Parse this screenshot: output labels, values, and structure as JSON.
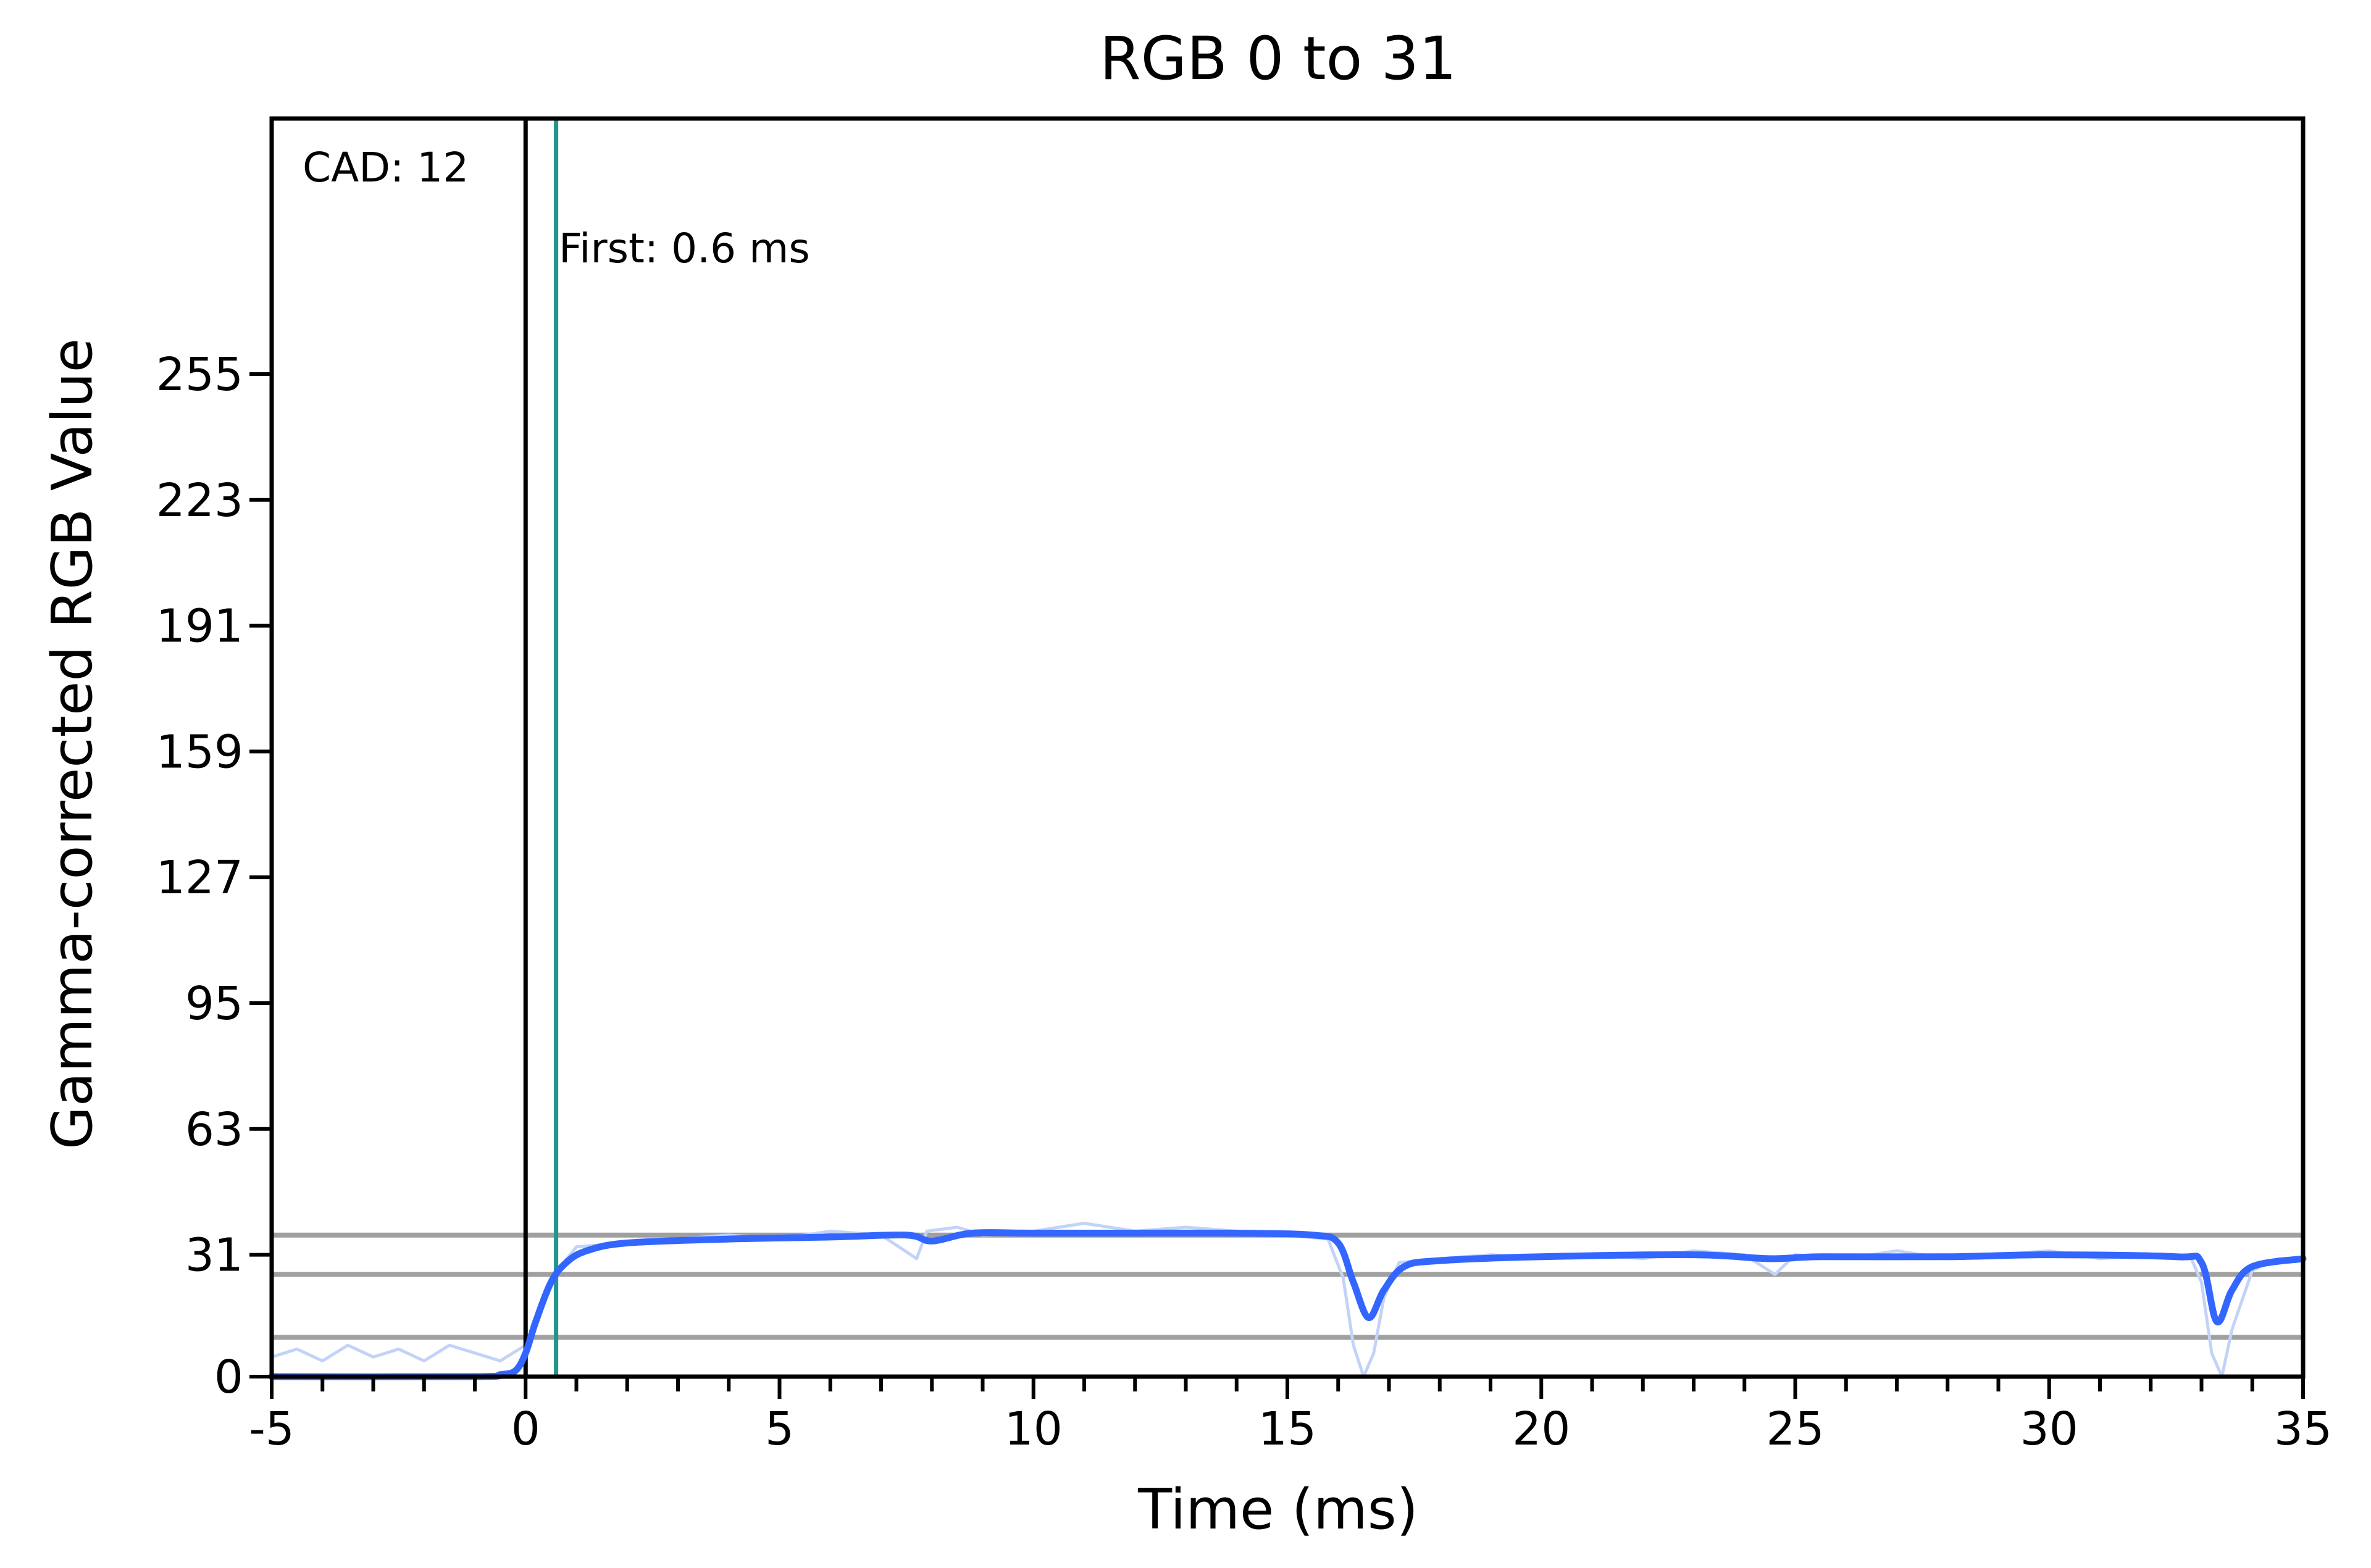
{
  "chart_data": {
    "type": "line",
    "title": "RGB 0 to 31",
    "xlabel": "Time (ms)",
    "ylabel": "Gamma-corrected RGB Value",
    "xlim": [
      -5,
      35
    ],
    "ylim": [
      0,
      320
    ],
    "x_ticks": [
      -5,
      0,
      5,
      10,
      15,
      20,
      25,
      30,
      35
    ],
    "y_ticks": [
      0,
      31,
      63,
      95,
      127,
      159,
      191,
      223,
      255
    ],
    "grid": false,
    "legend": "none",
    "colors": {
      "smoothed": "#3366ff",
      "raw": "#c3d3f7",
      "reference_lines": "#a0a0a0",
      "start_line": "#000000",
      "first_line": "#20968c"
    },
    "annotations": {
      "cad": "CAD: 12",
      "first": "First: 0.6 ms"
    },
    "vertical_lines": {
      "start": 0,
      "first": 0.6
    },
    "horizontal_lines": [
      10,
      26,
      36
    ],
    "series": [
      {
        "role": "smoothed",
        "x": [
          -5,
          -1,
          -0.5,
          -0.2,
          0,
          0.2,
          0.5,
          0.8,
          1.2,
          2,
          4,
          6,
          7.5,
          8,
          8.8,
          10,
          12,
          14,
          15.5,
          16,
          16.3,
          16.6,
          16.9,
          17.3,
          18,
          20,
          23,
          24.5,
          25.5,
          28,
          30,
          32.5,
          33,
          33.3,
          33.6,
          34,
          35
        ],
        "y": [
          0,
          0,
          0.5,
          1.5,
          6,
          14,
          24,
          29,
          32,
          34,
          35,
          35.5,
          36,
          34.5,
          36.5,
          36.5,
          36.5,
          36.5,
          36,
          34,
          24,
          15,
          22,
          28,
          29.5,
          30.5,
          31,
          30,
          30.5,
          30.5,
          31,
          30.5,
          29,
          14,
          22,
          28,
          30
        ]
      },
      {
        "role": "raw",
        "x": [
          -5,
          -4.5,
          -4,
          -3.5,
          -3,
          -2.5,
          -2,
          -1.5,
          -1,
          -0.5,
          0,
          0.5,
          1,
          2,
          3,
          4,
          5,
          6,
          7,
          7.7,
          7.9,
          8.5,
          9,
          10,
          11,
          12,
          13,
          14,
          15,
          15.8,
          16.1,
          16.3,
          16.5,
          16.7,
          16.9,
          17.2,
          18,
          19,
          20,
          21,
          22,
          23,
          24,
          24.6,
          25,
          26,
          27,
          28,
          29,
          30,
          31,
          32,
          32.8,
          33,
          33.2,
          33.4,
          33.6,
          34,
          34.5,
          35
        ],
        "y": [
          5,
          7,
          4,
          8,
          5,
          7,
          4,
          8,
          6,
          4,
          8,
          25,
          33,
          34,
          35,
          36,
          35,
          37,
          36,
          30,
          37,
          38,
          36,
          37,
          39,
          37,
          38,
          37,
          36,
          35,
          25,
          8,
          0,
          6,
          20,
          29,
          30,
          31,
          30,
          31,
          30,
          32,
          31,
          26,
          31,
          30,
          32,
          30,
          31,
          32,
          30,
          31,
          30,
          24,
          6,
          0,
          12,
          27,
          30,
          30
        ]
      }
    ]
  }
}
